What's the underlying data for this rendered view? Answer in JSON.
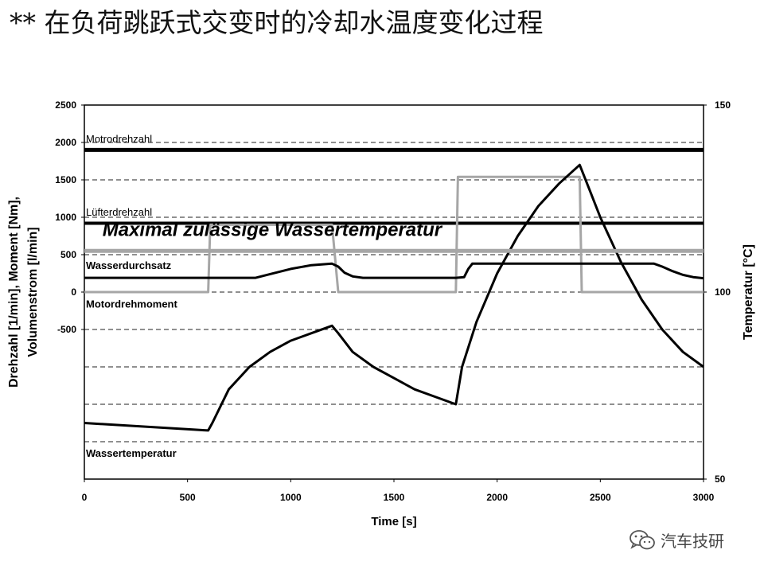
{
  "title": "** 在负荷跳跃式交变时的冷却水温度变化过程",
  "watermark": {
    "text": "汽车技研",
    "icon": "wechat-icon"
  },
  "chart_data": {
    "type": "line",
    "xlabel": "Time [s]",
    "ylabel_left_lines": [
      "Drehzahl [1/min], Moment [Nm],",
      "Volumenstrom [l/min]"
    ],
    "ylabel_right": "Temperatur [°C]",
    "xlim": [
      0,
      3000
    ],
    "ylim_left": [
      -2500,
      2500
    ],
    "ylim_right": [
      50,
      150
    ],
    "x_ticks": [
      "0",
      "500",
      "1000",
      "1500",
      "2000",
      "2500",
      "3000"
    ],
    "y_ticks_left": [
      {
        "v": 2500,
        "t": "2500"
      },
      {
        "v": 2000,
        "t": "2000"
      },
      {
        "v": 1500,
        "t": "1500"
      },
      {
        "v": 1000,
        "t": "1000"
      },
      {
        "v": 500,
        "t": "500"
      },
      {
        "v": 0,
        "t": "0"
      },
      {
        "v": -500,
        "t": "-500"
      }
    ],
    "y_ticks_right": [
      {
        "v": 150,
        "t": "150"
      },
      {
        "v": 100,
        "t": "100"
      },
      {
        "v": 50,
        "t": "50"
      }
    ],
    "grid": "dashed horizontal",
    "colors": {
      "black": "#000000",
      "gray": "#a6a6a6"
    },
    "series": [
      {
        "name": "Motrodrehzahl",
        "axis": "left",
        "color": "#000000",
        "width": 5,
        "x": [
          0,
          3000
        ],
        "y": [
          1900,
          1900
        ]
      },
      {
        "name": "Lüfterdrehzahl",
        "axis": "left",
        "color": "#000000",
        "width": 4,
        "x": [
          0,
          3000
        ],
        "y": [
          920,
          920
        ]
      },
      {
        "name": "Motordrehmoment",
        "axis": "left",
        "color": "#a6a6a6",
        "width": 3,
        "x": [
          0,
          600,
          610,
          1200,
          1230,
          1800,
          1810,
          2400,
          2410,
          3000
        ],
        "y": [
          0,
          0,
          900,
          900,
          0,
          0,
          1540,
          1540,
          0,
          0
        ]
      },
      {
        "name": "Wasserdurchsatz",
        "axis": "left",
        "color": "#000000",
        "width": 3,
        "x": [
          0,
          830,
          900,
          1000,
          1100,
          1200,
          1230,
          1260,
          1300,
          1350,
          1800,
          1840,
          1860,
          1880,
          2400,
          2760,
          2800,
          2850,
          2900,
          2950,
          3000
        ],
        "y": [
          190,
          190,
          240,
          310,
          360,
          380,
          340,
          260,
          210,
          190,
          190,
          200,
          310,
          380,
          380,
          380,
          340,
          280,
          230,
          200,
          185
        ]
      },
      {
        "name": "Wassertemperatur",
        "axis": "right",
        "color": "#000000",
        "width": 3,
        "x": [
          0,
          600,
          620,
          700,
          800,
          900,
          1000,
          1100,
          1200,
          1230,
          1300,
          1400,
          1500,
          1600,
          1700,
          1800,
          1830,
          1900,
          2000,
          2100,
          2200,
          2300,
          2400,
          2450,
          2500,
          2600,
          2700,
          2800,
          2900,
          3000
        ],
        "y": [
          65,
          63,
          65,
          74,
          80,
          84,
          87,
          89,
          91,
          89,
          84,
          80,
          77,
          74,
          72,
          70,
          80,
          92,
          105,
          115,
          123,
          129,
          134,
          127,
          120,
          108,
          98,
          90,
          84,
          80
        ]
      },
      {
        "name": "",
        "axis": "right",
        "color": "#a6a6a6",
        "width": 5,
        "x": [
          0,
          3000
        ],
        "y": [
          111,
          111
        ]
      }
    ],
    "labels": [
      {
        "text": "Motrodrehzahl",
        "x": 0,
        "y": 2000,
        "bold": false,
        "size": 13
      },
      {
        "text": "Lüfterdrehzahl",
        "x": 0,
        "y": 1020,
        "bold": false,
        "size": 13
      },
      {
        "text": "Wasserdurchsatz",
        "x": 0,
        "y": 310,
        "bold": true,
        "size": 13
      },
      {
        "text": "Motordrehmoment",
        "x": 0,
        "y": -210,
        "bold": true,
        "size": 13
      }
    ],
    "labels_right": [
      {
        "text": "Maximal zulässige Wassertemperatur",
        "x": 80,
        "y": 115,
        "bold": true,
        "italic": true,
        "size": 24
      },
      {
        "text": "Wassertemperatur",
        "x": 0,
        "y": 56,
        "bold": true,
        "size": 13
      }
    ]
  }
}
